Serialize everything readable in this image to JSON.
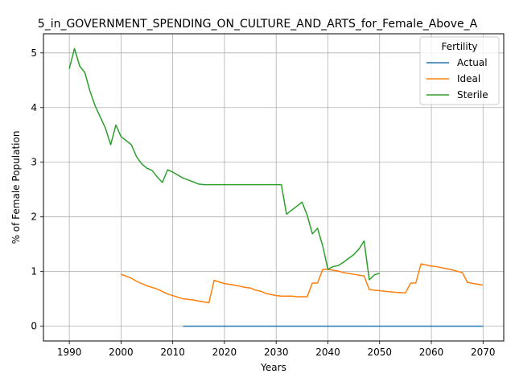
{
  "chart_data": {
    "type": "line",
    "title": "5_in_GOVERNMENT_SPENDING_ON_CULTURE_AND_ARTS_for_Female_Above_A",
    "xlabel": "Years",
    "ylabel": "% of Female Population",
    "xlim": [
      1985,
      2074
    ],
    "ylim": [
      -0.27,
      5.35
    ],
    "xticks": [
      1990,
      2000,
      2010,
      2020,
      2030,
      2040,
      2050,
      2060,
      2070
    ],
    "yticks": [
      0,
      1,
      2,
      3,
      4,
      5
    ],
    "grid": true,
    "legend": {
      "title": "Fertility",
      "placement": "top-right"
    },
    "series": [
      {
        "name": "Actual",
        "color": "#1f77b4",
        "points": [
          [
            2012,
            0
          ],
          [
            2070,
            0
          ]
        ]
      },
      {
        "name": "Ideal",
        "color": "#ff7f0e",
        "points": [
          [
            2000,
            0.95
          ],
          [
            2002,
            0.88
          ],
          [
            2003,
            0.82
          ],
          [
            2005,
            0.74
          ],
          [
            2007,
            0.68
          ],
          [
            2009,
            0.59
          ],
          [
            2010,
            0.56
          ],
          [
            2012,
            0.5
          ],
          [
            2014,
            0.48
          ],
          [
            2015,
            0.46
          ],
          [
            2017,
            0.43
          ],
          [
            2018,
            0.84
          ],
          [
            2020,
            0.78
          ],
          [
            2022,
            0.75
          ],
          [
            2024,
            0.71
          ],
          [
            2025,
            0.7
          ],
          [
            2026,
            0.66
          ],
          [
            2027,
            0.64
          ],
          [
            2028,
            0.6
          ],
          [
            2030,
            0.56
          ],
          [
            2031,
            0.55
          ],
          [
            2033,
            0.55
          ],
          [
            2034,
            0.54
          ],
          [
            2036,
            0.54
          ],
          [
            2037,
            0.79
          ],
          [
            2038,
            0.79
          ],
          [
            2039,
            1.04
          ],
          [
            2040,
            1.04
          ],
          [
            2042,
            1.01
          ],
          [
            2043,
            0.98
          ],
          [
            2045,
            0.95
          ],
          [
            2047,
            0.92
          ],
          [
            2048,
            0.67
          ],
          [
            2050,
            0.65
          ],
          [
            2052,
            0.63
          ],
          [
            2053,
            0.62
          ],
          [
            2055,
            0.61
          ],
          [
            2056,
            0.79
          ],
          [
            2057,
            0.79
          ],
          [
            2058,
            1.14
          ],
          [
            2060,
            1.1
          ],
          [
            2061,
            1.09
          ],
          [
            2062,
            1.07
          ],
          [
            2063,
            1.05
          ],
          [
            2064,
            1.03
          ],
          [
            2066,
            0.98
          ],
          [
            2067,
            0.8
          ],
          [
            2070,
            0.75
          ]
        ]
      },
      {
        "name": "Sterile",
        "color": "#2ca02c",
        "points": [
          [
            1990,
            4.71
          ],
          [
            1991,
            5.08
          ],
          [
            1992,
            4.76
          ],
          [
            1993,
            4.64
          ],
          [
            1994,
            4.3
          ],
          [
            1995,
            4.03
          ],
          [
            1997,
            3.62
          ],
          [
            1998,
            3.32
          ],
          [
            1999,
            3.68
          ],
          [
            2000,
            3.47
          ],
          [
            2002,
            3.32
          ],
          [
            2003,
            3.1
          ],
          [
            2004,
            2.97
          ],
          [
            2005,
            2.89
          ],
          [
            2006,
            2.85
          ],
          [
            2007,
            2.73
          ],
          [
            2008,
            2.63
          ],
          [
            2009,
            2.86
          ],
          [
            2010,
            2.82
          ],
          [
            2012,
            2.71
          ],
          [
            2014,
            2.64
          ],
          [
            2015,
            2.6
          ],
          [
            2016,
            2.59
          ],
          [
            2031,
            2.59
          ],
          [
            2032,
            2.05
          ],
          [
            2035,
            2.27
          ],
          [
            2036,
            2.03
          ],
          [
            2037,
            1.69
          ],
          [
            2038,
            1.79
          ],
          [
            2039,
            1.47
          ],
          [
            2040,
            1.04
          ],
          [
            2041,
            1.09
          ],
          [
            2042,
            1.11
          ],
          [
            2043,
            1.17
          ],
          [
            2044,
            1.24
          ],
          [
            2045,
            1.31
          ],
          [
            2046,
            1.41
          ],
          [
            2047,
            1.56
          ],
          [
            2048,
            0.85
          ],
          [
            2049,
            0.94
          ],
          [
            2050,
            0.97
          ]
        ]
      }
    ]
  }
}
